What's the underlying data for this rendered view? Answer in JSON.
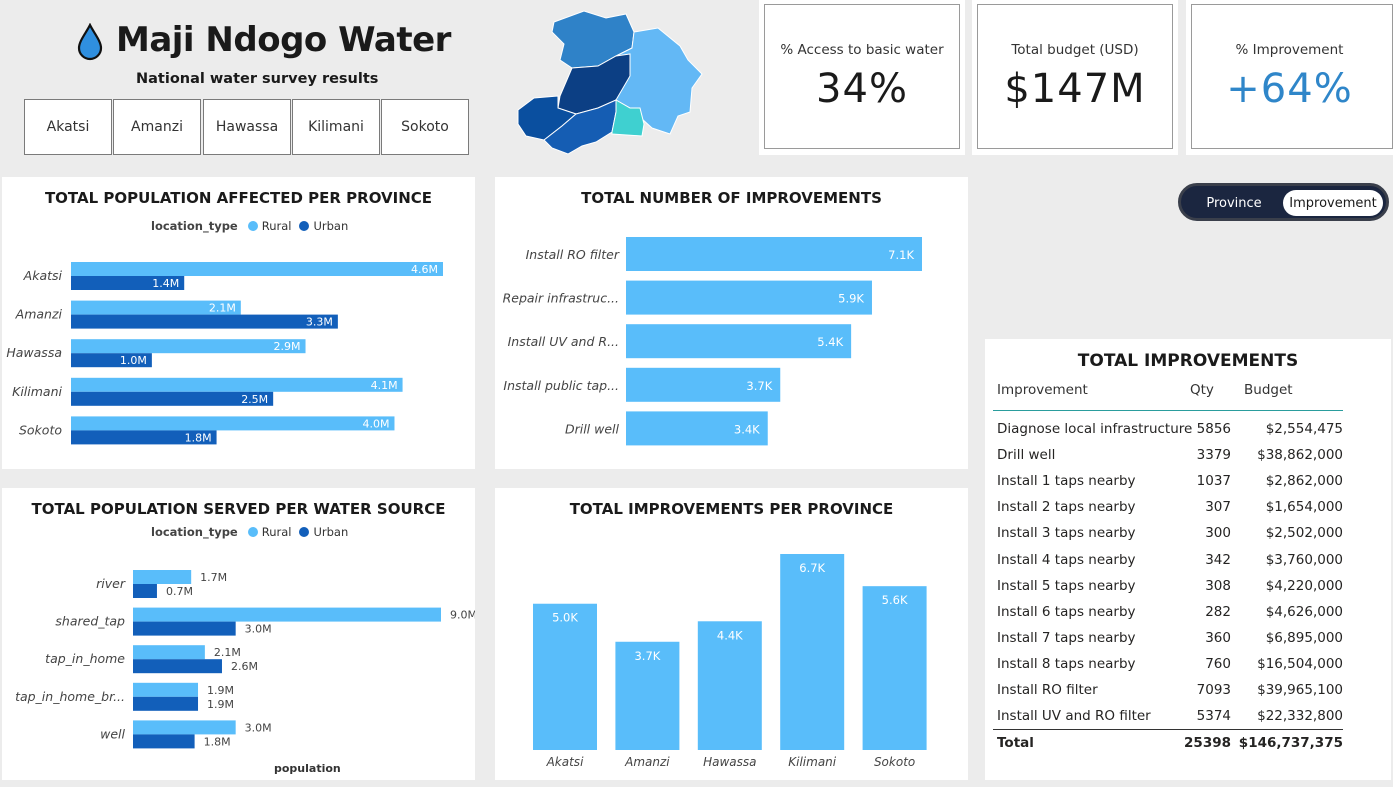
{
  "header": {
    "title": "Maji Ndogo Water",
    "subtitle": "National water survey results",
    "provinces": [
      "Akatsi",
      "Amanzi",
      "Hawassa",
      "Kilimani",
      "Sokoto"
    ]
  },
  "map_colors": [
    "#2f82c8",
    "#63b8f5",
    "#0c3f84",
    "#0a4f9f",
    "#155db3",
    "#3fd0d0"
  ],
  "kpis": [
    {
      "label": "% Access to basic water",
      "value": "34%"
    },
    {
      "label": "Total budget (USD)",
      "value": "$147M"
    },
    {
      "label": "% Improvement",
      "value": "+64%",
      "color": "#2f86c9"
    }
  ],
  "toggle": {
    "options": [
      "Province",
      "Improvement"
    ],
    "selected": "Improvement"
  },
  "colors": {
    "rural": "#59bdfa",
    "urban": "#125fba",
    "bar": "#59bdfa"
  },
  "chart_affected": {
    "title": "TOTAL POPULATION AFFECTED PER PROVINCE",
    "legend_title": "location_type",
    "legend": [
      "Rural",
      "Urban"
    ]
  },
  "chart_improvements": {
    "title": "TOTAL NUMBER OF IMPROVEMENTS"
  },
  "chart_served": {
    "title": "TOTAL POPULATION SERVED PER WATER SOURCE",
    "legend_title": "location_type",
    "legend": [
      "Rural",
      "Urban"
    ],
    "xlabel": "population"
  },
  "chart_province": {
    "title": "TOTAL IMPROVEMENTS PER PROVINCE"
  },
  "chart_data": [
    {
      "type": "bar",
      "orientation": "horizontal",
      "title": "TOTAL POPULATION AFFECTED PER PROVINCE",
      "categories": [
        "Akatsi",
        "Amanzi",
        "Hawassa",
        "Kilimani",
        "Sokoto"
      ],
      "series": [
        {
          "name": "Rural",
          "values": [
            4.6,
            2.1,
            2.9,
            4.1,
            4.0
          ],
          "labels": [
            "4.6M",
            "2.1M",
            "2.9M",
            "4.1M",
            "4.0M"
          ]
        },
        {
          "name": "Urban",
          "values": [
            1.4,
            3.3,
            1.0,
            2.5,
            1.8
          ],
          "labels": [
            "1.4M",
            "3.3M",
            "1.0M",
            "2.5M",
            "1.8M"
          ]
        }
      ],
      "xlim": [
        0,
        4.6
      ]
    },
    {
      "type": "bar",
      "orientation": "horizontal",
      "title": "TOTAL NUMBER OF IMPROVEMENTS",
      "categories": [
        "Install RO filter",
        "Repair infrastruc...",
        "Install UV and R...",
        "Install public tap...",
        "Drill well"
      ],
      "values": [
        7.1,
        5.9,
        5.4,
        3.7,
        3.4
      ],
      "labels": [
        "7.1K",
        "5.9K",
        "5.4K",
        "3.7K",
        "3.4K"
      ],
      "xlim": [
        0,
        7.1
      ]
    },
    {
      "type": "bar",
      "orientation": "horizontal",
      "title": "TOTAL POPULATION SERVED PER WATER SOURCE",
      "xlabel": "population",
      "categories": [
        "river",
        "shared_tap",
        "tap_in_home",
        "tap_in_home_br...",
        "well"
      ],
      "series": [
        {
          "name": "Rural",
          "values": [
            1.7,
            9.0,
            2.1,
            1.9,
            3.0
          ],
          "labels": [
            "1.7M",
            "9.0M",
            "2.1M",
            "1.9M",
            "3.0M"
          ]
        },
        {
          "name": "Urban",
          "values": [
            0.7,
            3.0,
            2.6,
            1.9,
            1.8
          ],
          "labels": [
            "0.7M",
            "3.0M",
            "2.6M",
            "1.9M",
            "1.8M"
          ]
        }
      ],
      "xlim": [
        0,
        9.0
      ]
    },
    {
      "type": "bar",
      "orientation": "vertical",
      "title": "TOTAL IMPROVEMENTS PER PROVINCE",
      "categories": [
        "Akatsi",
        "Amanzi",
        "Hawassa",
        "Kilimani",
        "Sokoto"
      ],
      "values": [
        5.0,
        3.7,
        4.4,
        6.7,
        5.6
      ],
      "labels": [
        "5.0K",
        "3.7K",
        "4.4K",
        "6.7K",
        "5.6K"
      ],
      "ylim": [
        0,
        6.7
      ]
    }
  ],
  "table": {
    "title": "TOTAL IMPROVEMENTS",
    "headers": [
      "Improvement",
      "Qty",
      "Budget"
    ],
    "rows": [
      [
        "Diagnose local infrastructure",
        "5856",
        "$2,554,475"
      ],
      [
        "Drill well",
        "3379",
        "$38,862,000"
      ],
      [
        "Install 1 taps nearby",
        "1037",
        "$2,862,000"
      ],
      [
        "Install 2 taps nearby",
        "307",
        "$1,654,000"
      ],
      [
        "Install 3 taps nearby",
        "300",
        "$2,502,000"
      ],
      [
        "Install 4 taps nearby",
        "342",
        "$3,760,000"
      ],
      [
        "Install 5 taps nearby",
        "308",
        "$4,220,000"
      ],
      [
        "Install 6 taps nearby",
        "282",
        "$4,626,000"
      ],
      [
        "Install 7 taps nearby",
        "360",
        "$6,895,000"
      ],
      [
        "Install 8 taps nearby",
        "760",
        "$16,504,000"
      ],
      [
        "Install RO filter",
        "7093",
        "$39,965,100"
      ],
      [
        "Install UV and RO filter",
        "5374",
        "$22,332,800"
      ]
    ],
    "total": [
      "Total",
      "25398",
      "$146,737,375"
    ]
  }
}
